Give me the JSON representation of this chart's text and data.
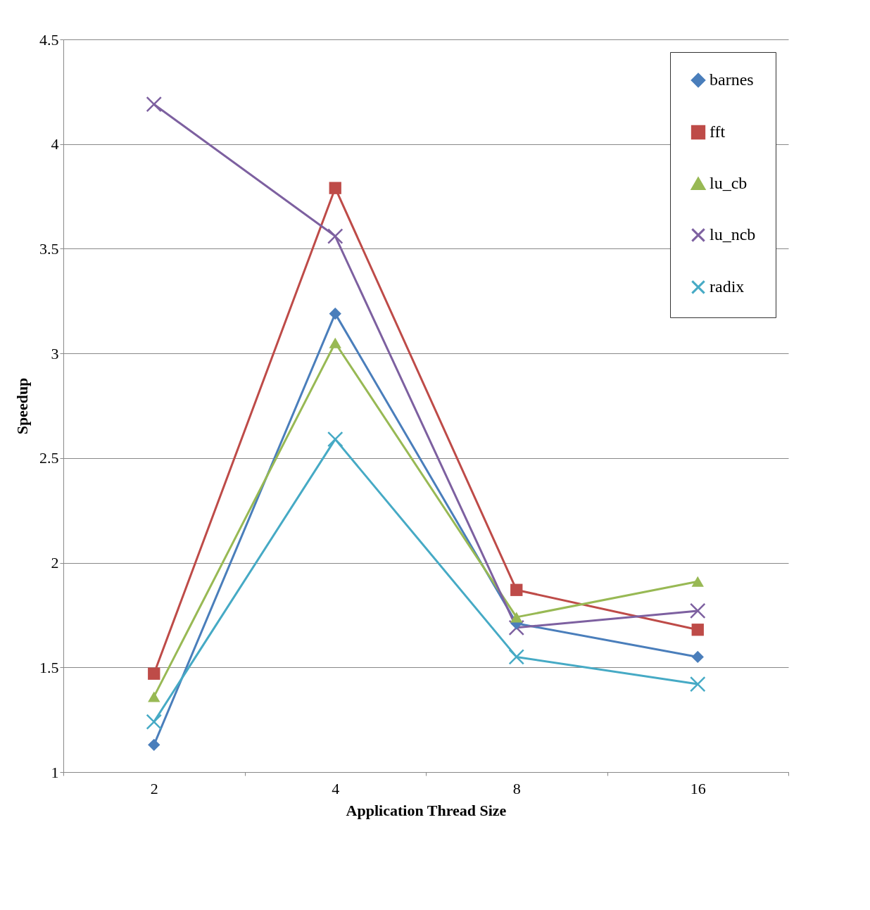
{
  "chart_data": {
    "type": "line",
    "xlabel": "Application Thread Size",
    "ylabel": "Speedup",
    "categories": [
      "2",
      "4",
      "8",
      "16"
    ],
    "series": [
      {
        "name": "barnes",
        "color": "#4a7ebb",
        "marker": "diamond",
        "values": [
          1.13,
          3.19,
          1.71,
          1.55
        ]
      },
      {
        "name": "fft",
        "color": "#be4b48",
        "marker": "square",
        "values": [
          1.47,
          3.79,
          1.87,
          1.68
        ]
      },
      {
        "name": "lu_cb",
        "color": "#98b954",
        "marker": "triangle",
        "values": [
          1.36,
          3.05,
          1.74,
          1.91
        ]
      },
      {
        "name": "lu_ncb",
        "color": "#7d60a0",
        "marker": "cross",
        "values": [
          4.19,
          3.56,
          1.69,
          1.77
        ]
      },
      {
        "name": "radix",
        "color": "#46aac5",
        "marker": "cross",
        "values": [
          1.24,
          2.59,
          1.55,
          1.42
        ]
      }
    ],
    "ylim": [
      1,
      4.5
    ],
    "yticks": [
      {
        "value": 1,
        "label": "1"
      },
      1.5,
      {
        "value": 2,
        "label": "2"
      },
      2.5,
      {
        "value": 3,
        "label": "3"
      },
      3.5,
      {
        "value": 4,
        "label": "4"
      },
      4.5
    ],
    "grid": "y",
    "legend": "top right"
  }
}
